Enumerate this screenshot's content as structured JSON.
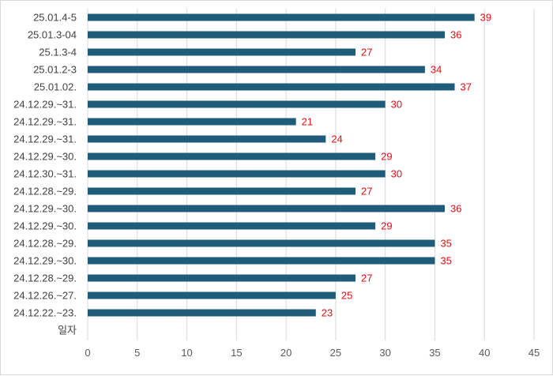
{
  "chart_data": {
    "type": "bar",
    "orientation": "horizontal",
    "categories": [
      "25.01.4-5",
      "25.01.3-04",
      "25.1.3-4",
      "25.01.2-3",
      "25.01.02.",
      "24.12.29.~31.",
      "24.12.29.~31.",
      "24.12.29.~31.",
      "24.12.29.~30.",
      "24.12.30.~31.",
      "24.12.28.~29.",
      "24.12.29.~30.",
      "24.12.29.~30.",
      "24.12.28.~29.",
      "24.12.29.~30.",
      "24.12.28.~29.",
      "24.12.26.~27.",
      "24.12.22.~23.",
      "일자"
    ],
    "values": [
      39,
      36,
      27,
      34,
      37,
      30,
      21,
      24,
      29,
      30,
      27,
      36,
      29,
      35,
      35,
      27,
      25,
      23,
      null
    ],
    "xlim": [
      0,
      45
    ],
    "xticks": [
      0,
      5,
      10,
      15,
      20,
      25,
      30,
      35,
      40,
      45
    ],
    "grid": true,
    "bar_color": "#1f5c7a",
    "data_label_color": "#e01010"
  }
}
